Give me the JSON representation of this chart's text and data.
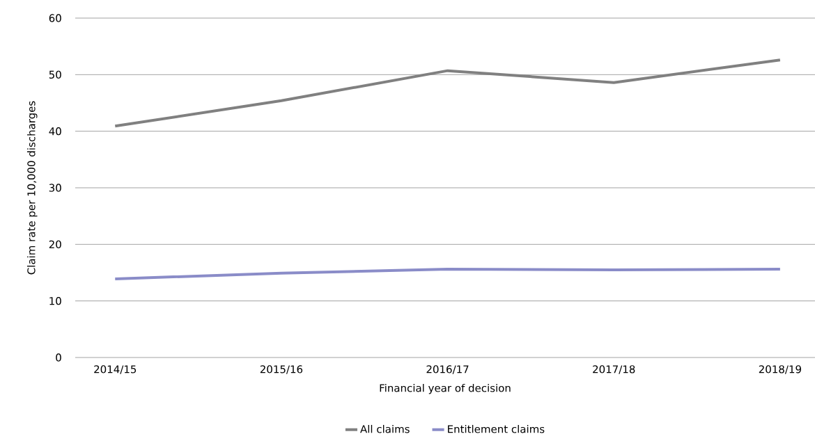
{
  "chart_data": {
    "type": "line",
    "xlabel": "Financial year of decision",
    "ylabel": "Claim rate per 10,000 discharges",
    "categories": [
      "2014/15",
      "2015/16",
      "2016/17",
      "2017/18",
      "2018/19"
    ],
    "series": [
      {
        "name": "All claims",
        "color": "#808080",
        "values": [
          40.9,
          45.4,
          50.7,
          48.6,
          52.6
        ]
      },
      {
        "name": "Entitlement claims",
        "color": "#8a8cc8",
        "values": [
          13.9,
          14.9,
          15.6,
          15.5,
          15.6
        ]
      }
    ],
    "ylim": [
      0,
      60
    ],
    "yticks": [
      0,
      10,
      20,
      30,
      40,
      50,
      60
    ],
    "grid": "y",
    "legend": "bottom",
    "marker": "none",
    "line_style": "solid"
  }
}
